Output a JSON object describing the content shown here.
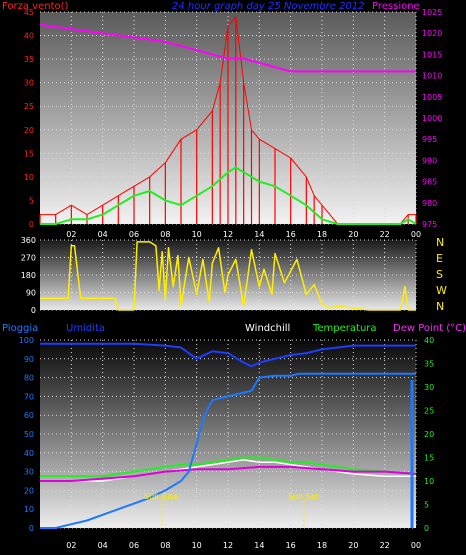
{
  "title": "24 hour graph day   25 Novembre 2012",
  "colors": {
    "wind": "#ff0000",
    "wind_avg": "#22ee22",
    "pressure": "#ff00ff",
    "direction": "#ffee00",
    "rain": "#1e78ff",
    "humidity": "#1e3cff",
    "windchill": "#ffffff",
    "temperature": "#22ee22",
    "dewpoint": "#dd00dd",
    "grid": "#dddddd"
  },
  "x_ticks": [
    "02",
    "04",
    "06",
    "08",
    "10",
    "12",
    "14",
    "16",
    "18",
    "20",
    "22",
    "00"
  ],
  "panels": {
    "wind": {
      "left_label": "Forza vento()",
      "right_label": "Pressione",
      "left_ticks": [
        "0",
        "5",
        "10",
        "15",
        "20",
        "25",
        "30",
        "35",
        "40",
        "45"
      ],
      "right_ticks": [
        "975",
        "980",
        "985",
        "990",
        "995",
        "1000",
        "1005",
        "1010",
        "1015",
        "1020",
        "1025"
      ]
    },
    "direction": {
      "left_ticks": [
        "0",
        "90",
        "180",
        "270",
        "360"
      ],
      "right_ticks": [
        "N",
        "W",
        "S",
        "E",
        "N"
      ]
    },
    "weather": {
      "labels": [
        "Pioggia",
        "Umidita",
        "Windchill",
        "Temperatura",
        "Dew Point (°C)"
      ],
      "left_ticks": [
        "0",
        "10",
        "20",
        "30",
        "40",
        "50",
        "60",
        "70",
        "80",
        "90",
        "100"
      ],
      "right_ticks": [
        "0",
        "5",
        "10",
        "15",
        "20",
        "25",
        "30",
        "35",
        "40"
      ],
      "sun_rise": "Sun Rise",
      "sun_set": "Sun Set"
    }
  },
  "chart_data": [
    {
      "type": "line",
      "title": "24 hour graph day   25 Novembre 2012",
      "x_unit": "hour",
      "x_range": [
        0,
        24
      ],
      "ylim": [
        0,
        45
      ],
      "y2lim": [
        975,
        1025
      ],
      "series": [
        {
          "name": "Forza vento()",
          "axis": "left",
          "x": [
            0,
            1,
            2,
            3,
            4,
            5,
            6,
            7,
            8,
            9,
            10,
            11,
            11.5,
            12,
            12.5,
            13,
            13.5,
            14,
            15,
            16,
            17,
            17.5,
            18,
            19,
            20,
            21,
            22,
            23,
            23.5,
            24
          ],
          "values": [
            2,
            2,
            4,
            2,
            4,
            6,
            8,
            10,
            13,
            18,
            20,
            24,
            30,
            42,
            44,
            30,
            20,
            18,
            16,
            14,
            10,
            6,
            4,
            0,
            0,
            0,
            0,
            0,
            2,
            2
          ]
        },
        {
          "axis": "left",
          "x": [
            0,
            1,
            2,
            3,
            4,
            5,
            6,
            7,
            8,
            9,
            10,
            11,
            12,
            12.5,
            13,
            14,
            15,
            16,
            17,
            18,
            19,
            20,
            21,
            22,
            23,
            23.5,
            24
          ],
          "values": [
            0,
            0,
            1,
            1,
            2,
            4,
            6,
            7,
            5,
            4,
            6,
            8,
            11,
            12,
            11,
            9,
            8,
            6,
            4,
            1,
            0,
            0,
            0,
            0,
            0,
            1,
            0
          ]
        },
        {
          "name": "Pressione",
          "axis": "right",
          "x": [
            0,
            2,
            4,
            6,
            8,
            10,
            12,
            13,
            14,
            16,
            18,
            20,
            22,
            23,
            24
          ],
          "values": [
            1022,
            1021,
            1020,
            1019,
            1018,
            1016,
            1014,
            1014,
            1013,
            1011,
            1011,
            1011,
            1011,
            1011,
            1011
          ]
        }
      ]
    },
    {
      "type": "line",
      "x_unit": "hour",
      "x_range": [
        0,
        24
      ],
      "ylim": [
        0,
        360
      ],
      "series": [
        {
          "x": [
            0,
            0.8,
            1.8,
            2,
            2.2,
            2.6,
            2.8,
            3,
            4,
            4.8,
            5,
            5.6,
            6,
            6.2,
            7,
            7.2,
            7.4,
            7.6,
            7.8,
            8,
            8.2,
            8.5,
            8.8,
            9,
            9.5,
            10,
            10.4,
            10.8,
            11,
            11.4,
            11.8,
            12,
            12.5,
            13,
            13.5,
            14,
            14.3,
            14.8,
            15,
            15.6,
            16,
            16.4,
            17,
            17.5,
            18,
            18.5,
            19,
            20,
            21,
            22,
            23,
            23.3,
            23.5,
            24
          ],
          "values": [
            60,
            60,
            60,
            330,
            330,
            60,
            60,
            60,
            60,
            60,
            0,
            0,
            0,
            350,
            350,
            340,
            330,
            100,
            300,
            50,
            320,
            120,
            280,
            20,
            270,
            80,
            260,
            40,
            240,
            320,
            90,
            180,
            260,
            20,
            310,
            120,
            210,
            80,
            290,
            140,
            200,
            260,
            80,
            130,
            30,
            10,
            20,
            10,
            0,
            0,
            0,
            120,
            0,
            0
          ]
        }
      ]
    },
    {
      "type": "line",
      "x_unit": "hour",
      "x_range": [
        0,
        24
      ],
      "ylim": [
        0,
        100
      ],
      "y2lim": [
        0,
        40
      ],
      "series": [
        {
          "name": "Pioggia",
          "axis": "left",
          "x": [
            0,
            1,
            2,
            3,
            4,
            5,
            6,
            7,
            8,
            9,
            9.5,
            10,
            10.5,
            11,
            12,
            12.5,
            13,
            13.5,
            14,
            15,
            16,
            16.5,
            17,
            18,
            19,
            20,
            21,
            22,
            23,
            24
          ],
          "values": [
            0,
            0,
            2,
            4,
            7,
            10,
            13,
            16,
            20,
            25,
            30,
            45,
            60,
            68,
            70,
            71,
            72,
            73,
            80,
            81,
            81,
            82,
            82,
            82,
            82,
            82,
            82,
            82,
            82,
            82
          ]
        },
        {
          "name": "Umidita",
          "axis": "left",
          "x": [
            0,
            2,
            4,
            6,
            8,
            9,
            10,
            10.5,
            11,
            12,
            13,
            13.5,
            14,
            15,
            16,
            17,
            18,
            19,
            20,
            22,
            24
          ],
          "values": [
            98,
            98,
            98,
            98,
            97,
            96,
            90,
            92,
            94,
            93,
            88,
            86,
            88,
            90,
            92,
            93,
            95,
            96,
            97,
            97,
            97
          ]
        },
        {
          "name": "Windchill",
          "axis": "right",
          "x": [
            0,
            2,
            4,
            5,
            6,
            7,
            8,
            9,
            10,
            11,
            12,
            13,
            14,
            15,
            16,
            17,
            18,
            19,
            20,
            22,
            24
          ],
          "values": [
            10,
            10,
            10,
            10.5,
            11,
            11.5,
            12,
            12.5,
            13,
            13.5,
            14,
            14.5,
            14,
            14,
            13.5,
            13,
            12.5,
            12,
            11.5,
            11,
            11
          ]
        },
        {
          "name": "Temperatura",
          "axis": "right",
          "x": [
            0,
            2,
            4,
            5,
            6,
            7,
            8,
            9,
            10,
            11,
            12,
            13,
            14,
            15,
            16,
            17,
            18,
            19,
            20,
            22,
            24
          ],
          "values": [
            11,
            11,
            11,
            11.5,
            12,
            12.5,
            13,
            13.5,
            13.5,
            14,
            14.5,
            15,
            15,
            14.5,
            14,
            14,
            13.5,
            13,
            12.5,
            12,
            11.5
          ]
        },
        {
          "name": "Dew Point (°C)",
          "axis": "right",
          "x": [
            0,
            2,
            4,
            6,
            8,
            10,
            12,
            14,
            16,
            18,
            20,
            22,
            24
          ],
          "values": [
            10,
            10,
            10.5,
            11,
            12,
            12.5,
            12.5,
            13,
            13,
            12.5,
            12,
            12,
            11.5
          ]
        }
      ]
    }
  ]
}
